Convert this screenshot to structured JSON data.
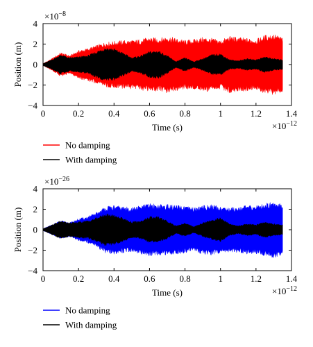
{
  "chart_data": [
    {
      "type": "area",
      "xlabel": "Time (s)",
      "ylabel": "Position (m)",
      "x_multiplier": "×10",
      "x_exponent": "−12",
      "y_multiplier": "×10",
      "y_exponent": "−8",
      "xlim": [
        0,
        1.4
      ],
      "ylim": [
        -4,
        4
      ],
      "x_ticks": [
        "0",
        "0.2",
        "0.4",
        "0.6",
        "0.8",
        "1",
        "1.2",
        "1.4"
      ],
      "y_ticks": [
        "4",
        "2",
        "0",
        "−2",
        "−4"
      ],
      "x": [
        0,
        0.05,
        0.1,
        0.15,
        0.2,
        0.25,
        0.3,
        0.35,
        0.4,
        0.45,
        0.5,
        0.55,
        0.6,
        0.65,
        0.7,
        0.75,
        0.8,
        0.85,
        0.9,
        0.95,
        1.0,
        1.05,
        1.1,
        1.15,
        1.2,
        1.25,
        1.3,
        1.35
      ],
      "series": [
        {
          "name": "No damping",
          "color": "#ff0000",
          "values": [
            0.1,
            0.6,
            1.2,
            0.9,
            1.4,
            1.6,
            1.9,
            2.2,
            2.3,
            2.4,
            2.4,
            2.5,
            2.7,
            2.6,
            2.8,
            2.6,
            2.4,
            2.5,
            2.7,
            2.6,
            2.4,
            2.8,
            2.7,
            2.6,
            2.5,
            2.9,
            3.0,
            2.7
          ]
        },
        {
          "name": "With damping",
          "color": "#000000",
          "values": [
            0.1,
            0.5,
            1.0,
            0.7,
            0.8,
            0.9,
            1.3,
            1.7,
            1.6,
            1.2,
            0.7,
            0.9,
            1.3,
            1.4,
            0.9,
            0.3,
            0.7,
            0.3,
            0.6,
            1.0,
            1.1,
            0.5,
            0.4,
            0.6,
            0.5,
            0.8,
            0.6,
            0.5
          ]
        }
      ],
      "legend_position": "below"
    },
    {
      "type": "area",
      "xlabel": "Time (s)",
      "ylabel": "Position (m)",
      "x_multiplier": "×10",
      "x_exponent": "−12",
      "y_multiplier": "×10",
      "y_exponent": "−26",
      "xlim": [
        0,
        1.4
      ],
      "ylim": [
        -4,
        4
      ],
      "x_ticks": [
        "0",
        "0.2",
        "0.4",
        "0.6",
        "0.8",
        "1",
        "1.2",
        "1.4"
      ],
      "y_ticks": [
        "4",
        "2",
        "0",
        "−2",
        "−4"
      ],
      "x": [
        0,
        0.05,
        0.1,
        0.15,
        0.2,
        0.25,
        0.3,
        0.35,
        0.4,
        0.45,
        0.5,
        0.55,
        0.6,
        0.65,
        0.7,
        0.75,
        0.8,
        0.85,
        0.9,
        0.95,
        1.0,
        1.05,
        1.1,
        1.15,
        1.2,
        1.25,
        1.3,
        1.35
      ],
      "series": [
        {
          "name": "No damping",
          "color": "#0000ff",
          "values": [
            0.1,
            0.5,
            0.9,
            0.7,
            1.1,
            1.3,
            1.7,
            2.3,
            2.4,
            2.3,
            2.2,
            2.4,
            2.6,
            2.5,
            2.5,
            2.4,
            2.3,
            2.2,
            2.4,
            2.5,
            2.3,
            2.2,
            2.3,
            2.4,
            2.4,
            2.6,
            2.8,
            2.6
          ]
        },
        {
          "name": "With damping",
          "color": "#000000",
          "values": [
            0.1,
            0.5,
            0.9,
            0.7,
            0.8,
            0.9,
            1.2,
            1.6,
            1.5,
            1.2,
            0.8,
            0.9,
            1.3,
            1.3,
            0.9,
            0.4,
            0.7,
            0.3,
            0.7,
            1.0,
            1.2,
            0.6,
            0.4,
            0.6,
            0.5,
            0.8,
            0.6,
            0.5
          ]
        }
      ],
      "legend_position": "below"
    }
  ]
}
